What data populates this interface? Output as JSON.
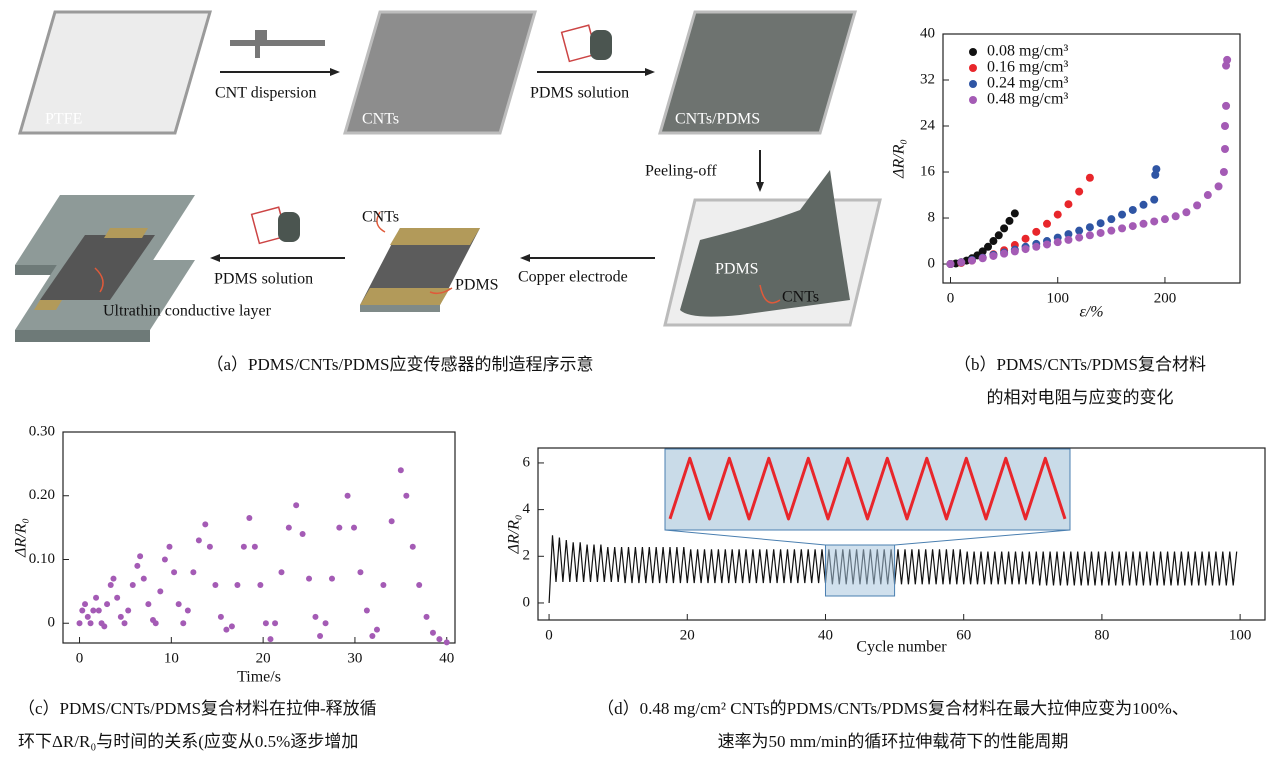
{
  "diagram": {
    "labels": [
      "PTFE",
      "CNT dispersion",
      "CNTs",
      "PDMS solution",
      "CNTs/PDMS",
      "Peeling-off",
      "PDMS",
      "CNTs",
      "Copper electrode",
      "CNTs",
      "PDMS",
      "PDMS solution",
      "Ultrathin conductive layer"
    ],
    "caption": "（a）PDMS/CNTs/PDMS应变传感器的制造程序示意"
  },
  "chart_data": [
    {
      "type": "scatter",
      "xlabel": "ε/%",
      "ylabel": "ΔR/R₀",
      "xlim": [
        -7,
        270
      ],
      "ylim": [
        -3.3,
        40
      ],
      "xticks": [
        0,
        100,
        200
      ],
      "yticks": [
        0,
        8,
        16,
        24,
        32,
        40
      ],
      "legend": "upper left",
      "caption": [
        "（b）PDMS/CNTs/PDMS复合材料",
        "的相对电阻与应变的变化"
      ],
      "series": [
        {
          "name": "0.08 mg/cm³",
          "color": "#111111",
          "x": [
            0,
            5,
            10,
            15,
            20,
            25,
            30,
            35,
            40,
            45,
            50,
            55,
            60
          ],
          "values": [
            0,
            0.1,
            0.3,
            0.6,
            1.0,
            1.5,
            2.2,
            3.0,
            4.0,
            5.0,
            6.2,
            7.5,
            8.8
          ]
        },
        {
          "name": "0.16 mg/cm³",
          "color": "#e8262b",
          "x": [
            0,
            10,
            20,
            30,
            40,
            50,
            60,
            70,
            80,
            90,
            100,
            110,
            120,
            130
          ],
          "values": [
            0,
            0.2,
            0.6,
            1.1,
            1.7,
            2.4,
            3.3,
            4.4,
            5.6,
            7.0,
            8.6,
            10.4,
            12.6,
            15.0
          ]
        },
        {
          "name": "0.24 mg/cm³",
          "color": "#2f55a4",
          "x": [
            0,
            10,
            20,
            30,
            40,
            50,
            60,
            70,
            80,
            90,
            100,
            110,
            120,
            130,
            140,
            150,
            160,
            170,
            180,
            190,
            191,
            192
          ],
          "values": [
            0,
            0.3,
            0.7,
            1.1,
            1.6,
            2.0,
            2.5,
            3.0,
            3.5,
            4.0,
            4.6,
            5.2,
            5.8,
            6.4,
            7.1,
            7.8,
            8.6,
            9.4,
            10.3,
            11.2,
            15.5,
            16.5
          ]
        },
        {
          "name": "0.48 mg/cm³",
          "color": "#a45bb5",
          "x": [
            0,
            10,
            20,
            30,
            40,
            50,
            60,
            70,
            80,
            90,
            100,
            110,
            120,
            130,
            140,
            150,
            160,
            170,
            180,
            190,
            200,
            210,
            220,
            230,
            240,
            250,
            255,
            256,
            256,
            257,
            257,
            258
          ],
          "values": [
            0,
            0.3,
            0.6,
            1.0,
            1.4,
            1.8,
            2.2,
            2.6,
            3.0,
            3.4,
            3.8,
            4.2,
            4.6,
            5.0,
            5.4,
            5.8,
            6.2,
            6.6,
            7.0,
            7.4,
            7.8,
            8.3,
            9.0,
            10.2,
            12.0,
            13.5,
            16,
            20,
            24,
            27.5,
            34.5,
            35.5
          ]
        }
      ]
    },
    {
      "type": "scatter",
      "xlabel": "Time/s",
      "ylabel": "ΔR/R₀",
      "xlim": [
        -1.8,
        40.9
      ],
      "ylim": [
        -0.031,
        0.3
      ],
      "xticks": [
        0,
        10,
        20,
        30,
        40
      ],
      "yticks": [
        0,
        {
          "value": 0.1,
          "label": "0.10"
        },
        {
          "value": 0.2,
          "label": "0.20"
        },
        {
          "value": 0.3,
          "label": "0.30"
        }
      ],
      "caption": [
        "（c）PDMS/CNTs/PDMS复合材料在拉伸-释放循",
        "环下ΔR/R₀与时间的关系(应变从0.5%逐步增加"
      ],
      "series": [
        {
          "color": "#a45bb5",
          "x": [
            0.0,
            0.3,
            0.6,
            0.9,
            1.2,
            1.5,
            1.8,
            2.1,
            2.4,
            2.7,
            3.0,
            3.4,
            3.7,
            4.1,
            4.5,
            4.9,
            5.3,
            5.8,
            6.3,
            6.6,
            7.0,
            7.5,
            8.0,
            8.3,
            8.8,
            9.3,
            9.8,
            10.3,
            10.8,
            11.3,
            11.8,
            12.4,
            13.0,
            13.7,
            14.2,
            14.8,
            15.4,
            16.0,
            16.6,
            17.2,
            17.9,
            18.5,
            19.1,
            19.7,
            20.3,
            20.8,
            21.3,
            22.0,
            22.8,
            23.6,
            24.3,
            25.0,
            25.7,
            26.2,
            26.8,
            27.5,
            28.3,
            29.2,
            29.9,
            30.6,
            31.3,
            31.9,
            32.4,
            33.1,
            34.0,
            35.0,
            35.6,
            36.3,
            37.0,
            37.8,
            38.5,
            39.2,
            40.0
          ],
          "values": [
            0.0,
            0.02,
            0.03,
            0.01,
            0.0,
            0.02,
            0.04,
            0.02,
            0.0,
            -0.005,
            0.03,
            0.06,
            0.07,
            0.04,
            0.01,
            0.0,
            0.02,
            0.06,
            0.09,
            0.105,
            0.07,
            0.03,
            0.005,
            0.0,
            0.05,
            0.1,
            0.12,
            0.08,
            0.03,
            0.0,
            0.02,
            0.08,
            0.13,
            0.155,
            0.12,
            0.06,
            0.01,
            -0.01,
            -0.005,
            0.06,
            0.12,
            0.165,
            0.12,
            0.06,
            0.0,
            -0.025,
            0.0,
            0.08,
            0.15,
            0.185,
            0.14,
            0.07,
            0.01,
            -0.02,
            0.0,
            0.07,
            0.15,
            0.2,
            0.15,
            0.08,
            0.02,
            -0.02,
            -0.01,
            0.06,
            0.16,
            0.24,
            0.2,
            0.12,
            0.06,
            0.01,
            -0.015,
            -0.025,
            -0.03
          ]
        }
      ]
    },
    {
      "type": "line",
      "xlabel": "Cycle number",
      "ylabel": "ΔR/R₀",
      "xlim": [
        -1.6,
        103.6
      ],
      "ylim": [
        -0.73,
        6.64
      ],
      "xticks": [
        0,
        20,
        40,
        60,
        80,
        100
      ],
      "yticks": [
        0,
        2,
        4,
        6
      ],
      "caption": [
        "（d）0.48 mg/cm² CNTs的PDMS/CNTs/PDMS复合材料在最大拉伸应变为100%、",
        "速率为50 mm/min的循环拉伸载荷下的性能周期"
      ],
      "series": [
        {
          "color": "#111111",
          "x": [
            0,
            0.5,
            1,
            1.5,
            2,
            2.5,
            3,
            3.5,
            4,
            4.5,
            5,
            5.5,
            6,
            6.5,
            7,
            7.5,
            8,
            8.5,
            9,
            9.5,
            10,
            10.5,
            11,
            11.5,
            12,
            12.5,
            13,
            13.5,
            14,
            14.5,
            15,
            15.5,
            16,
            16.5,
            17,
            17.5,
            18,
            18.5,
            19,
            19.5,
            20,
            20.5,
            21,
            21.5,
            22,
            22.5,
            23,
            23.5,
            24,
            24.5,
            25,
            25.5,
            26,
            26.5,
            27,
            27.5,
            28,
            28.5,
            29,
            29.5,
            30,
            30.5,
            31,
            31.5,
            32,
            32.5,
            33,
            33.5,
            34,
            34.5,
            35,
            35.5,
            36,
            36.5,
            37,
            37.5,
            38,
            38.5,
            39,
            39.5,
            40,
            40.5,
            41,
            41.5,
            42,
            42.5,
            43,
            43.5,
            44,
            44.5,
            45,
            45.5,
            46,
            46.5,
            47,
            47.5,
            48,
            48.5,
            49,
            49.5,
            50,
            50.5,
            51,
            51.5,
            52,
            52.5,
            53,
            53.5,
            54,
            54.5,
            55,
            55.5,
            56,
            56.5,
            57,
            57.5,
            58,
            58.5,
            59,
            59.5,
            60,
            60.5,
            61,
            61.5,
            62,
            62.5,
            63,
            63.5,
            64,
            64.5,
            65,
            65.5,
            66,
            66.5,
            67,
            67.5,
            68,
            68.5,
            69,
            69.5,
            70,
            70.5,
            71,
            71.5,
            72,
            72.5,
            73,
            73.5,
            74,
            74.5,
            75,
            75.5,
            76,
            76.5,
            77,
            77.5,
            78,
            78.5,
            79,
            79.5,
            80,
            80.5,
            81,
            81.5,
            82,
            82.5,
            83,
            83.5,
            84,
            84.5,
            85,
            85.5,
            86,
            86.5,
            87,
            87.5,
            88,
            88.5,
            89,
            89.5,
            90,
            90.5,
            91,
            91.5,
            92,
            92.5,
            93,
            93.5,
            94,
            94.5,
            95,
            95.5,
            96,
            96.5,
            97,
            97.5,
            98,
            98.5,
            99,
            99.5
          ],
          "values": [
            0,
            2.9,
            0.9,
            2.8,
            0.9,
            2.7,
            0.9,
            2.6,
            0.9,
            2.6,
            0.9,
            2.5,
            0.9,
            2.5,
            0.9,
            2.5,
            0.9,
            2.4,
            0.9,
            2.4,
            0.9,
            2.4,
            0.85,
            2.4,
            0.85,
            2.4,
            0.85,
            2.4,
            0.85,
            2.4,
            0.85,
            2.4,
            0.85,
            2.4,
            0.85,
            2.4,
            0.85,
            2.4,
            0.85,
            2.4,
            0.85,
            2.3,
            0.85,
            2.3,
            0.85,
            2.3,
            0.85,
            2.3,
            0.85,
            2.3,
            0.85,
            2.3,
            0.85,
            2.3,
            0.85,
            2.3,
            0.85,
            2.3,
            0.85,
            2.3,
            0.85,
            2.3,
            0.85,
            2.3,
            0.85,
            2.3,
            0.85,
            2.3,
            0.85,
            2.3,
            0.85,
            2.3,
            0.85,
            2.3,
            0.85,
            2.3,
            0.85,
            2.3,
            0.85,
            2.3,
            0.85,
            2.3,
            0.8,
            2.3,
            0.8,
            2.3,
            0.8,
            2.3,
            0.8,
            2.3,
            0.8,
            2.3,
            0.8,
            2.3,
            0.8,
            2.3,
            0.8,
            2.3,
            0.8,
            2.3,
            0.8,
            2.3,
            0.8,
            2.3,
            0.8,
            2.3,
            0.8,
            2.3,
            0.8,
            2.3,
            0.8,
            2.3,
            0.8,
            2.3,
            0.8,
            2.3,
            0.8,
            2.3,
            0.8,
            2.3,
            0.8,
            2.2,
            0.8,
            2.2,
            0.8,
            2.2,
            0.8,
            2.2,
            0.8,
            2.2,
            0.8,
            2.2,
            0.8,
            2.2,
            0.8,
            2.2,
            0.8,
            2.2,
            0.8,
            2.2,
            0.8,
            2.2,
            0.75,
            2.2,
            0.75,
            2.2,
            0.75,
            2.2,
            0.75,
            2.2,
            0.75,
            2.2,
            0.75,
            2.2,
            0.75,
            2.2,
            0.75,
            2.2,
            0.75,
            2.2,
            0.75,
            2.2,
            0.75,
            2.2,
            0.75,
            2.2,
            0.75,
            2.2,
            0.75,
            2.2,
            0.75,
            2.2,
            0.75,
            2.2,
            0.75,
            2.2,
            0.75,
            2.2,
            0.75,
            2.2,
            0.75,
            2.2,
            0.75,
            2.2,
            0.75,
            2.2,
            0.75,
            2.2,
            0.75,
            2.2,
            0.75,
            2.2,
            0.75,
            2.2,
            0.75,
            2.2,
            0.75,
            2.2,
            0.75,
            2.2
          ]
        }
      ],
      "inset": {
        "color": "#e8262b",
        "x": [
          40,
          40.5,
          41,
          41.5,
          42,
          42.5,
          43,
          43.5,
          44,
          44.5,
          45,
          45.5,
          46,
          46.5,
          47,
          47.5,
          48,
          48.5,
          49,
          49.5,
          50
        ],
        "values": [
          3.6,
          6.2,
          3.6,
          6.2,
          3.6,
          6.2,
          3.6,
          6.2,
          3.6,
          6.2,
          3.6,
          6.2,
          3.6,
          6.2,
          3.6,
          6.2,
          3.6,
          6.2,
          3.6,
          6.2,
          3.6
        ]
      }
    }
  ]
}
